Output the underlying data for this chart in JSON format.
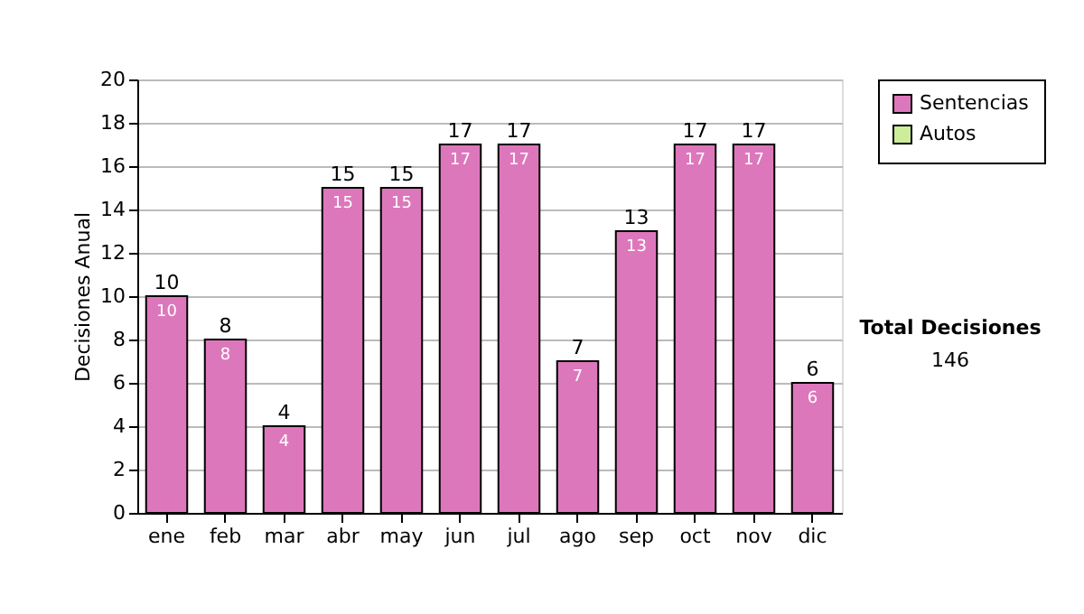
{
  "chart_data": {
    "type": "bar",
    "ylabel": "Decisiones Anual",
    "categories": [
      "ene",
      "feb",
      "mar",
      "abr",
      "may",
      "jun",
      "jul",
      "ago",
      "sep",
      "oct",
      "nov",
      "dic"
    ],
    "series": [
      {
        "name": "Sentencias",
        "color": "#dd77bb",
        "values": [
          10,
          8,
          4,
          15,
          15,
          17,
          17,
          7,
          13,
          17,
          17,
          6
        ],
        "value_labels": [
          "10",
          "8",
          "4",
          "15",
          "15",
          "17",
          "17",
          "7",
          "13",
          "17",
          "17",
          "6"
        ]
      },
      {
        "name": "Autos",
        "color": "#ccee99",
        "values": [
          null,
          null,
          null,
          null,
          null,
          null,
          null,
          null,
          null,
          null,
          null,
          null
        ]
      }
    ],
    "ylim": [
      0,
      20
    ],
    "yticks": [
      0,
      2,
      4,
      6,
      8,
      10,
      12,
      14,
      16,
      18,
      20
    ],
    "grid": "y",
    "legend": "right",
    "totals": [
      "10",
      "8",
      "4",
      "15",
      "15",
      "17",
      "17",
      "7",
      "13",
      "17",
      "17",
      "6"
    ],
    "annotations": [
      "Total Decisiones",
      "146"
    ]
  }
}
